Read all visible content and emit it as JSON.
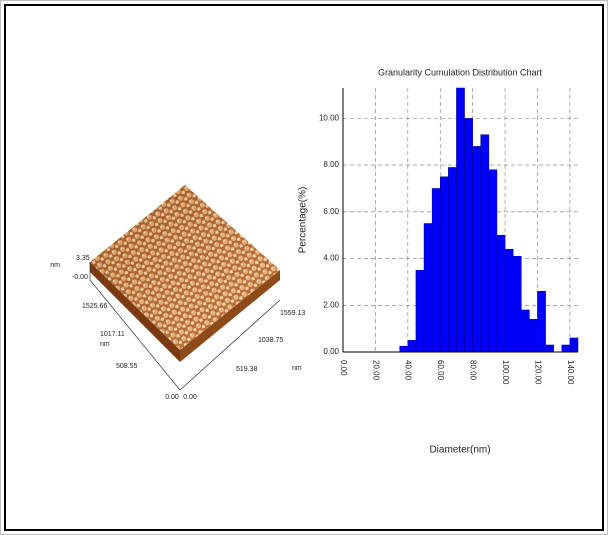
{
  "afm_image": {
    "labels": [
      "nm",
      "3.35",
      "-0.00",
      "1525.66",
      "1017.11",
      "nm",
      "508.55",
      "0.00",
      "0.00",
      "519.38",
      "1038.75",
      "1559.13",
      "nm"
    ]
  },
  "chart_data": {
    "type": "histogram",
    "title": "Granularity Cumulation Distribution  Chart",
    "x_label": "Diameter(nm)",
    "y_label": "Percentage(%)",
    "bins": [
      35,
      40,
      45,
      50,
      55,
      60,
      65,
      70,
      75,
      80,
      85,
      90,
      95,
      100,
      105,
      110,
      115,
      120,
      125,
      130,
      135,
      140,
      145
    ],
    "values": [
      0.25,
      0.5,
      3.5,
      5.5,
      7.0,
      7.5,
      7.9,
      11.3,
      10.0,
      8.8,
      9.3,
      7.8,
      5.0,
      4.4,
      4.1,
      1.8,
      1.4,
      2.6,
      0.3,
      0,
      0.3,
      0.6
    ],
    "color": "#0000ff",
    "xlim": [
      0,
      145
    ],
    "ylim": [
      0,
      11.3
    ],
    "xticks": [
      {
        "value": 0,
        "label": "0.00"
      },
      {
        "value": 20,
        "label": "20.00"
      },
      {
        "value": 40,
        "label": "40.00"
      },
      {
        "value": 60,
        "label": "60.00"
      },
      {
        "value": 80,
        "label": "80.00"
      },
      {
        "value": 100,
        "label": "100.00"
      },
      {
        "value": 120,
        "label": "120.00"
      },
      {
        "value": 140,
        "label": "140.00"
      }
    ],
    "yticks": [
      {
        "value": 0,
        "label": "0.00"
      },
      {
        "value": 2,
        "label": "2.00"
      },
      {
        "value": 4,
        "label": "4.00"
      },
      {
        "value": 6,
        "label": "6.00"
      },
      {
        "value": 8,
        "label": "8.00"
      },
      {
        "value": 10,
        "label": "10.00"
      }
    ],
    "grid": true
  }
}
